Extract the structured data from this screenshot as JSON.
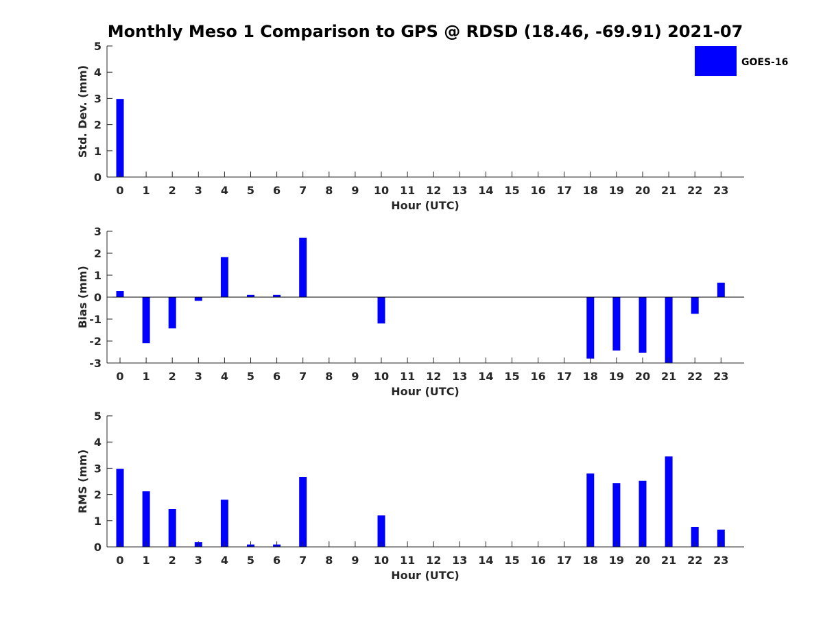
{
  "title": "Monthly Meso 1 Comparison to GPS @ RDSD (18.46, -69.91) 2021-07",
  "colors": {
    "bar": "#0000ff",
    "axis": "#262626",
    "background": "#ffffff"
  },
  "chart_data": [
    {
      "type": "bar",
      "ylabel": "Std. Dev. (mm)",
      "xlabel": "Hour (UTC)",
      "ylim": [
        0,
        5
      ],
      "yticks": [
        "0",
        "1",
        "2",
        "3",
        "4",
        "5"
      ],
      "categories": [
        "0",
        "1",
        "2",
        "3",
        "4",
        "5",
        "6",
        "7",
        "8",
        "9",
        "10",
        "11",
        "12",
        "13",
        "14",
        "15",
        "16",
        "17",
        "18",
        "19",
        "20",
        "21",
        "22",
        "23"
      ],
      "series": [
        {
          "name": "GOES-16",
          "values": [
            2.98,
            null,
            null,
            null,
            null,
            null,
            null,
            null,
            null,
            null,
            null,
            null,
            null,
            null,
            null,
            null,
            null,
            null,
            null,
            null,
            null,
            null,
            null,
            null
          ]
        }
      ],
      "legend": {
        "entries": [
          "GOES-16"
        ],
        "placement": "top-right, outside"
      },
      "grid": false
    },
    {
      "type": "bar",
      "ylabel": "Bias (mm)",
      "xlabel": "Hour (UTC)",
      "ylim": [
        -3,
        3
      ],
      "yticks": [
        "-3",
        "-2",
        "-1",
        "0",
        "1",
        "2",
        "3"
      ],
      "categories": [
        "0",
        "1",
        "2",
        "3",
        "4",
        "5",
        "6",
        "7",
        "8",
        "9",
        "10",
        "11",
        "12",
        "13",
        "14",
        "15",
        "16",
        "17",
        "18",
        "19",
        "20",
        "21",
        "22",
        "23"
      ],
      "series": [
        {
          "name": "GOES-16",
          "values": [
            0.28,
            -2.1,
            -1.42,
            -0.17,
            1.82,
            0.1,
            0.1,
            2.7,
            null,
            null,
            -1.2,
            null,
            null,
            null,
            null,
            null,
            null,
            null,
            -2.8,
            -2.43,
            -2.53,
            -3.0,
            -0.76,
            0.66
          ]
        }
      ],
      "grid": false
    },
    {
      "type": "bar",
      "ylabel": "RMS (mm)",
      "xlabel": "Hour (UTC)",
      "ylim": [
        0,
        5
      ],
      "yticks": [
        "0",
        "1",
        "2",
        "3",
        "4",
        "5"
      ],
      "categories": [
        "0",
        "1",
        "2",
        "3",
        "4",
        "5",
        "6",
        "7",
        "8",
        "9",
        "10",
        "11",
        "12",
        "13",
        "14",
        "15",
        "16",
        "17",
        "18",
        "19",
        "20",
        "21",
        "22",
        "23"
      ],
      "series": [
        {
          "name": "GOES-16",
          "values": [
            2.98,
            2.12,
            1.44,
            0.18,
            1.8,
            0.09,
            0.09,
            2.67,
            null,
            null,
            1.2,
            null,
            null,
            null,
            null,
            null,
            null,
            null,
            2.8,
            2.43,
            2.52,
            3.45,
            0.76,
            0.66
          ]
        }
      ],
      "grid": false
    }
  ]
}
